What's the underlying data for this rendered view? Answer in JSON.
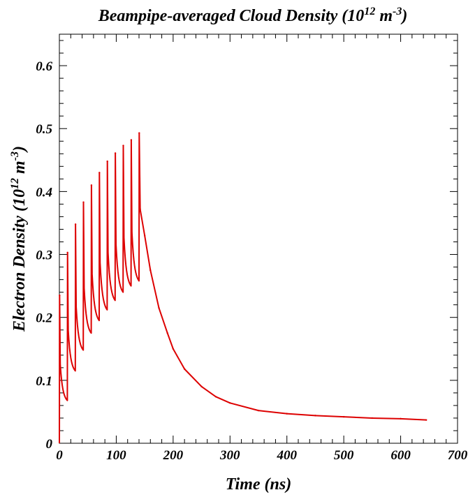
{
  "chart_data": {
    "type": "line",
    "title": "Beampipe-averaged Cloud Density (10",
    "title_sup": "12",
    "title_mid": " m",
    "title_sup2": "-3",
    "title_end": ")",
    "xlabel": "Time (ns)",
    "ylabel": "Electron Density (10",
    "ylabel_sup": "12",
    "ylabel_mid": " m",
    "ylabel_sup2": "-3",
    "ylabel_end": ")",
    "xlim": [
      0,
      700
    ],
    "ylim": [
      0,
      0.65
    ],
    "xticks": [
      "0",
      "100",
      "200",
      "300",
      "400",
      "500",
      "600",
      "700"
    ],
    "yticks": [
      "0",
      "0.1",
      "0.2",
      "0.3",
      "0.4",
      "0.5",
      "0.6"
    ],
    "grid": false,
    "series": [
      {
        "color": "#dd0000",
        "bunches": [
          {
            "t": 0,
            "base": 0.0,
            "peak": 0.235,
            "end": 0.068
          },
          {
            "t": 14,
            "base": 0.068,
            "peak": 0.303,
            "end": 0.115
          },
          {
            "t": 28,
            "base": 0.115,
            "peak": 0.348,
            "end": 0.148
          },
          {
            "t": 42,
            "base": 0.148,
            "peak": 0.383,
            "end": 0.175
          },
          {
            "t": 56,
            "base": 0.175,
            "peak": 0.41,
            "end": 0.195
          },
          {
            "t": 70,
            "base": 0.195,
            "peak": 0.43,
            "end": 0.212
          },
          {
            "t": 84,
            "base": 0.212,
            "peak": 0.448,
            "end": 0.227
          },
          {
            "t": 98,
            "base": 0.227,
            "peak": 0.461,
            "end": 0.24
          },
          {
            "t": 112,
            "base": 0.24,
            "peak": 0.473,
            "end": 0.25
          },
          {
            "t": 126,
            "base": 0.25,
            "peak": 0.482,
            "end": 0.258
          },
          {
            "t": 140,
            "base": 0.258,
            "peak": 0.493,
            "end": null
          }
        ],
        "decay": [
          [
            142,
            0.372
          ],
          [
            150,
            0.33
          ],
          [
            160,
            0.275
          ],
          [
            175,
            0.215
          ],
          [
            190,
            0.175
          ],
          [
            200,
            0.15
          ],
          [
            220,
            0.118
          ],
          [
            250,
            0.09
          ],
          [
            275,
            0.074
          ],
          [
            300,
            0.064
          ],
          [
            350,
            0.052
          ],
          [
            400,
            0.047
          ],
          [
            450,
            0.044
          ],
          [
            500,
            0.042
          ],
          [
            550,
            0.04
          ],
          [
            600,
            0.039
          ],
          [
            645,
            0.037
          ]
        ]
      }
    ]
  }
}
